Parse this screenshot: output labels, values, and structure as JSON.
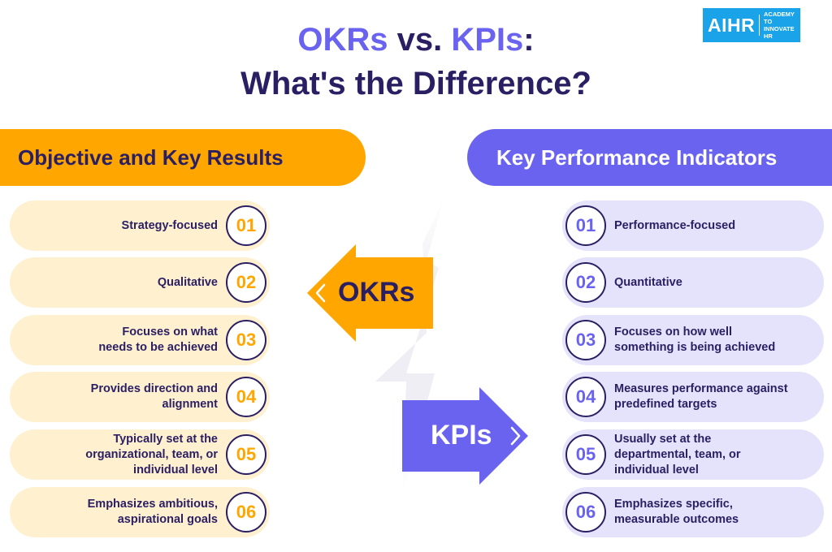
{
  "title": {
    "line1_okrs": "OKRs",
    "line1_vs": " vs. ",
    "line1_kpis": "KPIs",
    "line1_colon": ":",
    "line2": "What's the Difference?"
  },
  "logo": {
    "main": "AIHR",
    "sub_line1": "ACADEMY TO",
    "sub_line2": "INNOVATE HR"
  },
  "okr": {
    "heading": "Objective and Key Results",
    "arrow_label": "OKRs",
    "items": [
      {
        "num": "01",
        "lines": [
          "Strategy-focused"
        ]
      },
      {
        "num": "02",
        "lines": [
          "Qualitative"
        ]
      },
      {
        "num": "03",
        "lines": [
          "Focuses on what",
          "needs to be achieved"
        ]
      },
      {
        "num": "04",
        "lines": [
          "Provides direction and",
          "alignment"
        ]
      },
      {
        "num": "05",
        "lines": [
          "Typically set at the",
          "organizational, team, or",
          "individual level"
        ]
      },
      {
        "num": "06",
        "lines": [
          "Emphasizes ambitious,",
          "aspirational goals"
        ]
      }
    ]
  },
  "kpi": {
    "heading": "Key Performance Indicators",
    "arrow_label": "KPIs",
    "items": [
      {
        "num": "01",
        "lines": [
          "Performance-focused"
        ]
      },
      {
        "num": "02",
        "lines": [
          "Quantitative"
        ]
      },
      {
        "num": "03",
        "lines": [
          "Focuses on how well",
          "something is being achieved"
        ]
      },
      {
        "num": "04",
        "lines": [
          "Measures performance against",
          "predefined targets"
        ]
      },
      {
        "num": "05",
        "lines": [
          "Usually set at the",
          "departmental, team, or",
          "individual level"
        ]
      },
      {
        "num": "06",
        "lines": [
          "Emphasizes specific,",
          "measurable outcomes"
        ]
      }
    ]
  },
  "colors": {
    "navy": "#2a1f63",
    "orange": "#ffa600",
    "purple": "#6a63f0",
    "orange_light": "#fff0cf",
    "purple_light": "#e4e3fb",
    "logo_blue": "#1aa3e8"
  }
}
